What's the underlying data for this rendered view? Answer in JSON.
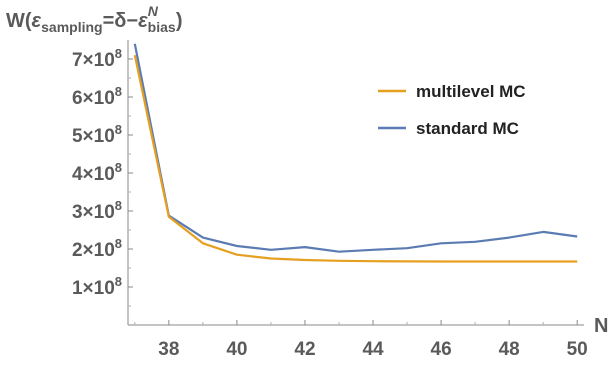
{
  "chart_data": {
    "type": "line",
    "title": "",
    "ylabel": {
      "prefix": "W(",
      "eps": "ε",
      "sub": "sampling",
      "mid": "=δ−",
      "eps2": "ε",
      "sub2": "bias",
      "sup2": "N",
      "suffix": ")"
    },
    "xlabel": "N",
    "xlim": [
      36.8,
      50.2
    ],
    "ylim": [
      0,
      750000000
    ],
    "x_ticks": [
      38,
      40,
      42,
      44,
      46,
      48,
      50
    ],
    "y_ticks": [
      {
        "value": 100000000,
        "coef": "1",
        "base": "10",
        "exp": "8"
      },
      {
        "value": 200000000,
        "coef": "2",
        "base": "10",
        "exp": "8"
      },
      {
        "value": 300000000,
        "coef": "3",
        "base": "10",
        "exp": "8"
      },
      {
        "value": 400000000,
        "coef": "4",
        "base": "10",
        "exp": "8"
      },
      {
        "value": 500000000,
        "coef": "5",
        "base": "10",
        "exp": "8"
      },
      {
        "value": 600000000,
        "coef": "6",
        "base": "10",
        "exp": "8"
      },
      {
        "value": 700000000,
        "coef": "7",
        "base": "10",
        "exp": "8"
      }
    ],
    "x": [
      37,
      38,
      39,
      40,
      41,
      42,
      43,
      44,
      45,
      46,
      47,
      48,
      49,
      50
    ],
    "series": [
      {
        "name": "multilevel MC",
        "color": "#e6a020",
        "values": [
          710000000,
          285000000,
          215000000,
          185000000,
          175000000,
          171000000,
          169000000,
          168000000,
          167500000,
          167000000,
          167000000,
          167000000,
          167000000,
          167000000
        ]
      },
      {
        "name": "standard MC",
        "color": "#5b7bb3",
        "values": [
          740000000,
          288000000,
          230000000,
          208000000,
          198000000,
          205000000,
          193000000,
          198000000,
          202000000,
          215000000,
          219000000,
          230000000,
          245000000,
          233000000
        ]
      }
    ],
    "legend_position": "top-right",
    "grid": false
  }
}
